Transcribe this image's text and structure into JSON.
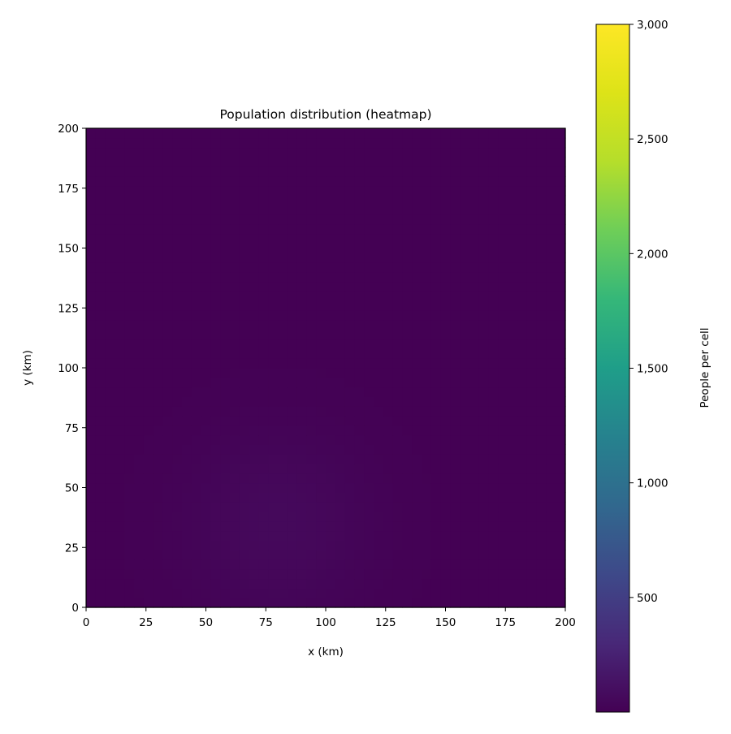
{
  "chart_data": {
    "type": "heatmap",
    "title": "Population distribution (heatmap)",
    "xlabel": "x (km)",
    "ylabel": "y (km)",
    "xlim": [
      0,
      200
    ],
    "ylim": [
      0,
      200
    ],
    "xticks": [
      0,
      25,
      50,
      75,
      100,
      125,
      150,
      175,
      200
    ],
    "yticks": [
      0,
      25,
      50,
      75,
      100,
      125,
      150,
      175,
      200
    ],
    "xtick_labels": [
      "0",
      "25",
      "50",
      "75",
      "100",
      "125",
      "150",
      "175",
      "200"
    ],
    "ytick_labels": [
      "0",
      "25",
      "50",
      "75",
      "100",
      "125",
      "150",
      "175",
      "200"
    ],
    "colormap": "viridis",
    "colorbar": {
      "label": "People per cell",
      "range": [
        0,
        3000
      ],
      "ticks": [
        500,
        1000,
        1500,
        2000,
        2500,
        3000
      ],
      "tick_labels": [
        "500",
        "1,000",
        "1,500",
        "2,000",
        "2,500",
        "3,000"
      ]
    },
    "background_value": 0,
    "hotspots": [
      {
        "center": [
          80,
          35
        ],
        "sigma_km": 28,
        "peak": 60
      }
    ],
    "grid": false
  }
}
